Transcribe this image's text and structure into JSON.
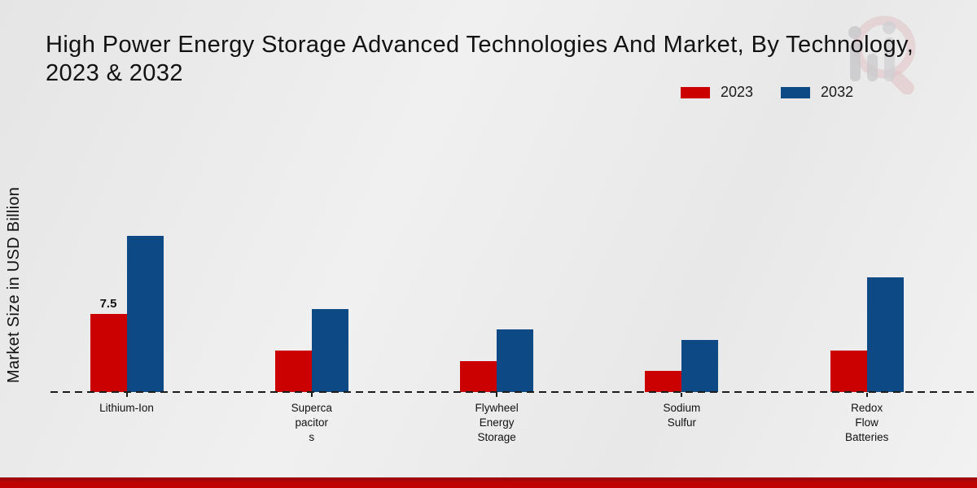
{
  "header": {
    "title_line1": "High Power Energy Storage Advanced Technologies And Market, By Technology,",
    "title_line2": "2023 & 2032"
  },
  "chart_data": {
    "type": "bar",
    "title": "High Power Energy Storage Advanced Technologies And Market, By Technology, 2023 & 2032",
    "ylabel": "Market Size in USD Billion",
    "xlabel": "",
    "ylim": [
      0,
      16
    ],
    "grid": false,
    "legend_position": "top-right",
    "baseline_style": "dashed",
    "categories": [
      "Lithium-Ion",
      "Supercapacitors",
      "Flywheel Energy Storage",
      "Sodium Sulfur",
      "Redox Flow Batteries"
    ],
    "category_label_lines": [
      [
        "Lithium-Ion"
      ],
      [
        "Superca",
        "pacitor",
        "s"
      ],
      [
        "Flywheel",
        "Energy",
        "Storage"
      ],
      [
        "Sodium",
        "Sulfur"
      ],
      [
        "Redox",
        "Flow",
        "Batteries"
      ]
    ],
    "series": [
      {
        "name": "2023",
        "color": "#cb0101",
        "values": [
          7.5,
          4,
          3,
          2,
          4
        ]
      },
      {
        "name": "2032",
        "color": "#0d4a85",
        "values": [
          15,
          8,
          6,
          5,
          11
        ]
      }
    ],
    "annotations": [
      {
        "series_index": 0,
        "category_index": 0,
        "text": "7.5"
      }
    ]
  },
  "colors": {
    "series_2023": "#cb0101",
    "series_2032": "#0d4a85",
    "footer_strip": "#c00202",
    "background": "#ececec",
    "text": "#141414"
  },
  "footer": {}
}
